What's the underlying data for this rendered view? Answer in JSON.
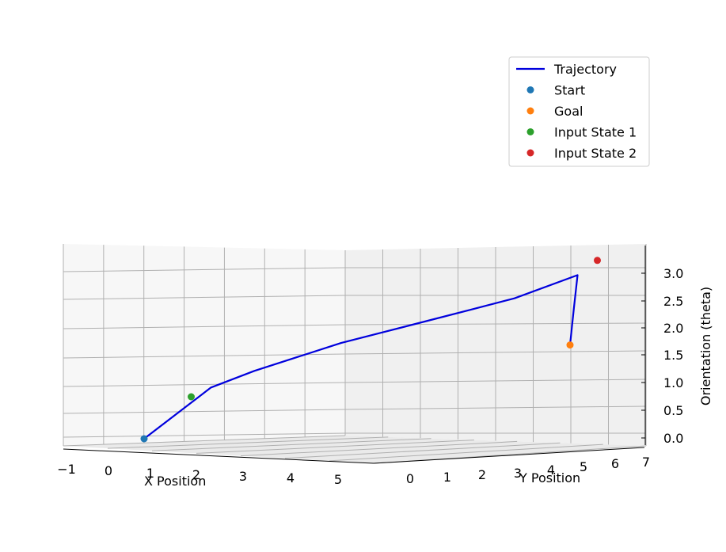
{
  "chart_data": {
    "type": "line",
    "projection": "3d",
    "xlabel": "X Position",
    "ylabel": "Y Position",
    "zlabel": "Orientation (theta)",
    "x_ticks": [
      "−1",
      "0",
      "1",
      "2",
      "3",
      "4",
      "5"
    ],
    "y_ticks": [
      "0",
      "1",
      "2",
      "3",
      "4",
      "5",
      "6",
      "7"
    ],
    "z_ticks": [
      "0.0",
      "0.5",
      "1.0",
      "1.5",
      "2.0",
      "2.5",
      "3.0"
    ],
    "grid": true,
    "legend_placement": "top-right",
    "series": [
      {
        "name": "Trajectory",
        "kind": "line",
        "color": "#0000dd",
        "points": [
          {
            "x": 0.0,
            "y": 0.0,
            "z": 0.0
          },
          {
            "x": 1.0,
            "y": 0.5,
            "z": 0.95
          },
          {
            "x": 1.5,
            "y": 1.0,
            "z": 1.25
          },
          {
            "x": 2.0,
            "y": 1.5,
            "z": 1.5
          },
          {
            "x": 2.5,
            "y": 2.0,
            "z": 1.75
          },
          {
            "x": 3.0,
            "y": 2.5,
            "z": 1.95
          },
          {
            "x": 3.5,
            "y": 3.0,
            "z": 2.15
          },
          {
            "x": 4.0,
            "y": 3.5,
            "z": 2.35
          },
          {
            "x": 4.5,
            "y": 4.0,
            "z": 2.55
          },
          {
            "x": 5.0,
            "y": 5.0,
            "z": 2.95
          },
          {
            "x": 4.5,
            "y": 5.5,
            "z": 2.3
          },
          {
            "x": 4.0,
            "y": 6.0,
            "z": 1.6
          }
        ]
      },
      {
        "name": "Start",
        "kind": "scatter",
        "color": "#1f77b4",
        "points": [
          {
            "x": 0.0,
            "y": 0.0,
            "z": 0.0
          }
        ]
      },
      {
        "name": "Goal",
        "kind": "scatter",
        "color": "#ff7f0e",
        "points": [
          {
            "x": 4.0,
            "y": 6.0,
            "z": 1.6
          }
        ]
      },
      {
        "name": "Input State 1",
        "kind": "scatter",
        "color": "#2ca02c",
        "points": [
          {
            "x": 1.0,
            "y": 0.0,
            "z": 0.8
          }
        ]
      },
      {
        "name": "Input State 2",
        "kind": "scatter",
        "color": "#d62728",
        "points": [
          {
            "x": 5.0,
            "y": 5.5,
            "z": 3.2
          }
        ]
      }
    ]
  }
}
